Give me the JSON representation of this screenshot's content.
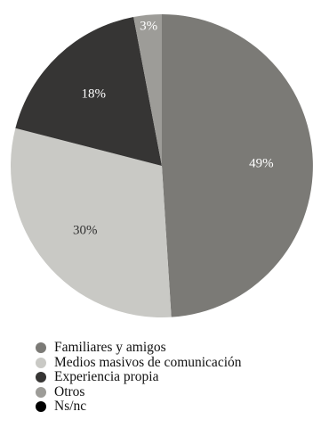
{
  "chart_data": {
    "type": "pie",
    "title": "",
    "slices": [
      {
        "label": "Familiares y amigos",
        "value": 49,
        "value_label": "49%",
        "color": "#7b7a76",
        "text_color": "#ffffff"
      },
      {
        "label": "Medios masivos de comunicación",
        "value": 30,
        "value_label": "30%",
        "color": "#c9c9c5",
        "text_color": "#333333"
      },
      {
        "label": "Experiencia propia",
        "value": 18,
        "value_label": "18%",
        "color": "#363534",
        "text_color": "#ffffff"
      },
      {
        "label": "Otros",
        "value": 3,
        "value_label": "3%",
        "color": "#9d9c98",
        "text_color": "#ffffff"
      },
      {
        "label": "Ns/nc",
        "value": 0,
        "value_label": "",
        "color": "#000000",
        "text_color": "#ffffff"
      }
    ],
    "start": "12 o'clock",
    "direction": "clockwise",
    "legend_position": "bottom-left"
  }
}
